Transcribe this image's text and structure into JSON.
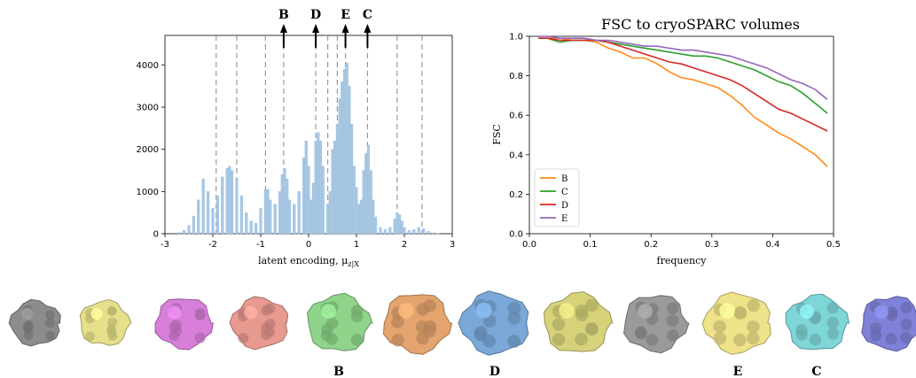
{
  "chart_data": [
    {
      "type": "bar",
      "title": "",
      "xlabel": "latent encoding, μ",
      "xlabel_subscript": "z|X",
      "ylabel": "",
      "xlim": [
        -3,
        3
      ],
      "ylim": [
        0,
        4700
      ],
      "xticks": [
        -3,
        -2,
        -1,
        0,
        1,
        2,
        3
      ],
      "yticks": [
        0,
        1000,
        2000,
        3000,
        4000
      ],
      "dashed_lines_x": [
        -1.93,
        -1.5,
        -0.9,
        -0.52,
        0.15,
        0.4,
        0.6,
        0.77,
        1.23,
        1.85,
        2.37
      ],
      "arrows": [
        {
          "label": "B",
          "x": -0.52
        },
        {
          "label": "D",
          "x": 0.15
        },
        {
          "label": "E",
          "x": 0.77
        },
        {
          "label": "C",
          "x": 1.23
        }
      ],
      "color": "#a8c8e4",
      "x": [
        -2.7,
        -2.6,
        -2.5,
        -2.4,
        -2.3,
        -2.2,
        -2.1,
        -2.0,
        -1.9,
        -1.8,
        -1.7,
        -1.65,
        -1.6,
        -1.5,
        -1.4,
        -1.3,
        -1.2,
        -1.1,
        -1.0,
        -0.9,
        -0.85,
        -0.8,
        -0.7,
        -0.6,
        -0.55,
        -0.5,
        -0.45,
        -0.4,
        -0.3,
        -0.2,
        -0.1,
        -0.05,
        0.0,
        0.05,
        0.1,
        0.15,
        0.2,
        0.25,
        0.3,
        0.4,
        0.45,
        0.5,
        0.55,
        0.6,
        0.65,
        0.7,
        0.75,
        0.8,
        0.85,
        0.9,
        0.95,
        1.0,
        1.05,
        1.1,
        1.15,
        1.2,
        1.25,
        1.3,
        1.35,
        1.4,
        1.5,
        1.6,
        1.7,
        1.8,
        1.85,
        1.9,
        1.95,
        2.0,
        2.1,
        2.2,
        2.3,
        2.4,
        2.5,
        2.6,
        2.7
      ],
      "values": [
        30,
        80,
        200,
        420,
        800,
        1300,
        1000,
        600,
        900,
        1350,
        1550,
        1600,
        1500,
        1300,
        900,
        500,
        300,
        250,
        600,
        1050,
        1050,
        800,
        700,
        1000,
        1400,
        1550,
        1300,
        800,
        700,
        1000,
        1800,
        2200,
        1600,
        800,
        1200,
        2200,
        2400,
        2200,
        1600,
        700,
        1000,
        2000,
        2200,
        2600,
        3200,
        3600,
        3900,
        4050,
        3500,
        2600,
        1600,
        1100,
        700,
        800,
        1500,
        1900,
        2100,
        1500,
        800,
        400,
        150,
        100,
        150,
        350,
        500,
        450,
        300,
        150,
        80,
        100,
        150,
        120,
        60,
        20,
        5
      ]
    },
    {
      "type": "line",
      "title": "FSC to cryoSPARC volumes",
      "xlabel": "frequency",
      "ylabel": "FSC",
      "xlim": [
        0,
        0.5
      ],
      "ylim": [
        0,
        1.0
      ],
      "xticks": [
        0.0,
        0.1,
        0.2,
        0.3,
        0.4,
        0.5
      ],
      "yticks": [
        0.0,
        0.2,
        0.4,
        0.6,
        0.8,
        1.0
      ],
      "legend_position": "bottom-left",
      "x": [
        0.015,
        0.03,
        0.05,
        0.07,
        0.09,
        0.11,
        0.13,
        0.15,
        0.17,
        0.19,
        0.21,
        0.23,
        0.25,
        0.27,
        0.29,
        0.31,
        0.33,
        0.35,
        0.37,
        0.39,
        0.41,
        0.43,
        0.45,
        0.47,
        0.49
      ],
      "series": [
        {
          "name": "B",
          "color": "#ff8c1a",
          "values": [
            0.99,
            0.99,
            0.99,
            0.98,
            0.98,
            0.97,
            0.94,
            0.92,
            0.89,
            0.89,
            0.86,
            0.82,
            0.79,
            0.78,
            0.76,
            0.74,
            0.7,
            0.65,
            0.59,
            0.55,
            0.51,
            0.48,
            0.44,
            0.4,
            0.34
          ]
        },
        {
          "name": "C",
          "color": "#2ca02c",
          "values": [
            0.99,
            0.99,
            0.97,
            0.98,
            0.98,
            0.98,
            0.97,
            0.96,
            0.95,
            0.94,
            0.93,
            0.92,
            0.91,
            0.9,
            0.9,
            0.89,
            0.87,
            0.85,
            0.83,
            0.8,
            0.77,
            0.75,
            0.71,
            0.66,
            0.61
          ]
        },
        {
          "name": "D",
          "color": "#d62728",
          "values": [
            0.99,
            0.99,
            0.98,
            0.98,
            0.98,
            0.98,
            0.97,
            0.95,
            0.93,
            0.91,
            0.89,
            0.87,
            0.86,
            0.84,
            0.82,
            0.8,
            0.78,
            0.75,
            0.71,
            0.67,
            0.63,
            0.61,
            0.58,
            0.55,
            0.52
          ]
        },
        {
          "name": "E",
          "color": "#9467bd",
          "values": [
            1.0,
            1.0,
            0.99,
            0.99,
            0.99,
            0.98,
            0.98,
            0.97,
            0.96,
            0.95,
            0.95,
            0.94,
            0.93,
            0.93,
            0.92,
            0.91,
            0.9,
            0.88,
            0.86,
            0.84,
            0.81,
            0.78,
            0.76,
            0.73,
            0.68
          ]
        }
      ]
    }
  ],
  "volumes": [
    {
      "color": "#8c8c8c",
      "label": ""
    },
    {
      "color": "#e6e08a",
      "label": ""
    },
    {
      "color": "#d77fd9",
      "label": ""
    },
    {
      "color": "#e89a90",
      "label": ""
    },
    {
      "color": "#8fd48a",
      "label": "B"
    },
    {
      "color": "#e4a46e",
      "label": ""
    },
    {
      "color": "#7aa8d8",
      "label": "D"
    },
    {
      "color": "#d6d27a",
      "label": ""
    },
    {
      "color": "#9a9a9a",
      "label": ""
    },
    {
      "color": "#eee28a",
      "label": "E"
    },
    {
      "color": "#7fd6d8",
      "label": "C"
    },
    {
      "color": "#7f82d8",
      "label": ""
    }
  ]
}
